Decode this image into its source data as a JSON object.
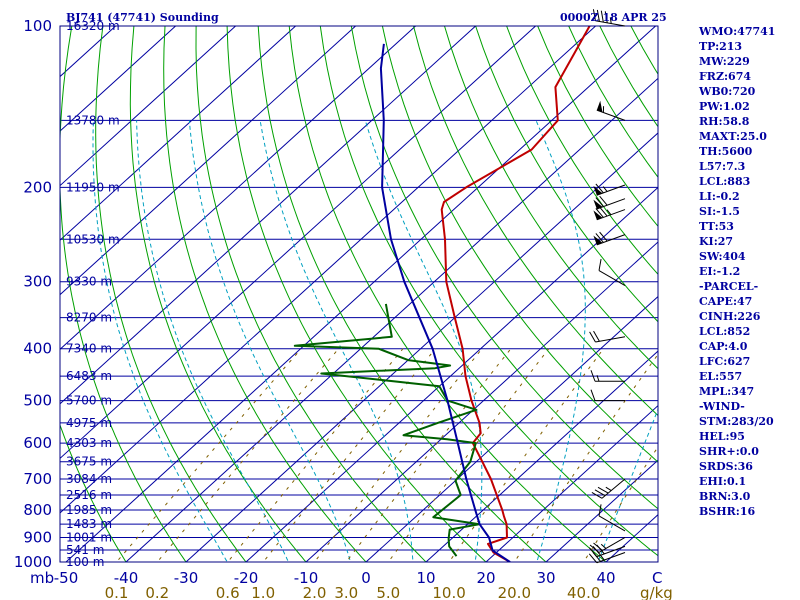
{
  "header": {
    "title": "BJ741 (47741) Sounding",
    "time": "0000Z 18 APR 25"
  },
  "side_panel": {
    "lines": [
      "WMO:47741",
      "TP:213",
      "MW:229",
      "FRZ:674",
      "WB0:720",
      "PW:1.02",
      "RH:58.8",
      "MAXT:25.0",
      "TH:5600",
      "L57:7.3",
      "LCL:883",
      "LI:-0.2",
      "SI:-1.5",
      "TT:53",
      "KI:27",
      "SW:404",
      "EI:-1.2",
      "-PARCEL-",
      "CAPE:47",
      "CINH:226",
      "LCL:852",
      "CAP:4.0",
      "LFC:627",
      "EL:557",
      "MPL:347",
      "-WIND-",
      "STM:283/20",
      "HEL:95",
      "SHR+:0.0",
      "SRDS:36",
      "EHI:0.1",
      "BRN:3.0",
      "BSHR:16"
    ]
  },
  "colors": {
    "frame": "#000080",
    "isobar": "#0000a0",
    "isotherm": "#0000a0",
    "dry_adiabat": "#00a000",
    "moist_adiabat": "#00a0c0",
    "mixing_ratio": "#806000",
    "temperature": "#c00000",
    "dewpoint": "#006000",
    "parcel": "#0000a0",
    "wind_barb": "#000000"
  },
  "chart_data": {
    "type": "skew-t log-p",
    "pressure_axis": {
      "unit": "mb",
      "range": [
        1000,
        100
      ],
      "scale": "log",
      "tick_labels": [
        {
          "p": 100,
          "label": "100"
        },
        {
          "p": 200,
          "label": "200"
        },
        {
          "p": 300,
          "label": "300"
        },
        {
          "p": 400,
          "label": "400"
        },
        {
          "p": 500,
          "label": "500"
        },
        {
          "p": 600,
          "label": "600"
        },
        {
          "p": 700,
          "label": "700"
        },
        {
          "p": 800,
          "label": "800"
        },
        {
          "p": 900,
          "label": "900"
        },
        {
          "p": 1000,
          "label": "1000"
        }
      ]
    },
    "temperature_axis": {
      "unit": "C",
      "unit_label": "C",
      "range": [
        -50,
        50
      ],
      "ticks": [
        -50,
        -40,
        -30,
        -20,
        -10,
        0,
        10,
        20,
        30,
        40
      ],
      "tick_labels": [
        "-50",
        "-40",
        "-30",
        "-20",
        "-10",
        "0",
        "10",
        "20",
        "30",
        "40"
      ]
    },
    "axis_unit_label": "mb",
    "mixing_ratio_axis": {
      "unit_label": "g/kg",
      "values": [
        0.1,
        0.2,
        0.6,
        1.0,
        2.0,
        3.0,
        5.0,
        10.0,
        20.0,
        40.0
      ],
      "labels": [
        "0.1",
        "0.2",
        "0.6",
        "1.0",
        "2.0",
        "3.0",
        "5.0",
        "10.0",
        "20.0",
        "40.0"
      ]
    },
    "height_levels": [
      {
        "p": 100,
        "label": "16320 m"
      },
      {
        "p": 150,
        "label": "13780 m"
      },
      {
        "p": 200,
        "label": "11950 m"
      },
      {
        "p": 250,
        "label": "10530 m"
      },
      {
        "p": 300,
        "label": "9330 m"
      },
      {
        "p": 350,
        "label": "8270 m"
      },
      {
        "p": 400,
        "label": "7340 m"
      },
      {
        "p": 450,
        "label": "6483 m"
      },
      {
        "p": 500,
        "label": "5700 m"
      },
      {
        "p": 550,
        "label": "4975 m"
      },
      {
        "p": 600,
        "label": "4303 m"
      },
      {
        "p": 650,
        "label": "3675 m"
      },
      {
        "p": 700,
        "label": "3084 m"
      },
      {
        "p": 750,
        "label": "2516 m"
      },
      {
        "p": 800,
        "label": "1985 m"
      },
      {
        "p": 850,
        "label": "1483 m"
      },
      {
        "p": 900,
        "label": "1001 m"
      },
      {
        "p": 950,
        "label": "541 m"
      },
      {
        "p": 1000,
        "label": "100 m"
      }
    ],
    "series": [
      {
        "name": "temperature",
        "points": [
          {
            "p": 1000,
            "t": 24.0
          },
          {
            "p": 960,
            "t": 19.5
          },
          {
            "p": 925,
            "t": 17.0
          },
          {
            "p": 900,
            "t": 19.0
          },
          {
            "p": 850,
            "t": 16.5
          },
          {
            "p": 820,
            "t": 14.5
          },
          {
            "p": 800,
            "t": 13.2
          },
          {
            "p": 700,
            "t": 5.6
          },
          {
            "p": 650,
            "t": 1.0
          },
          {
            "p": 600,
            "t": -4.0
          },
          {
            "p": 575,
            "t": -4.5
          },
          {
            "p": 550,
            "t": -6.6
          },
          {
            "p": 500,
            "t": -12.0
          },
          {
            "p": 450,
            "t": -17.5
          },
          {
            "p": 400,
            "t": -23.0
          },
          {
            "p": 350,
            "t": -30.0
          },
          {
            "p": 300,
            "t": -38.0
          },
          {
            "p": 250,
            "t": -46.0
          },
          {
            "p": 220,
            "t": -52.0
          },
          {
            "p": 213,
            "t": -53.0
          },
          {
            "p": 200,
            "t": -52.0
          },
          {
            "p": 170,
            "t": -48.0
          },
          {
            "p": 150,
            "t": -49.0
          },
          {
            "p": 130,
            "t": -55.5
          },
          {
            "p": 110,
            "t": -59.0
          },
          {
            "p": 100,
            "t": -61.0
          }
        ]
      },
      {
        "name": "dewpoint",
        "points": [
          {
            "p": 975,
            "t": 14.0
          },
          {
            "p": 935,
            "t": 11.0
          },
          {
            "p": 905,
            "t": 9.5
          },
          {
            "p": 870,
            "t": 8.0
          },
          {
            "p": 850,
            "t": 12.0
          },
          {
            "p": 825,
            "t": 3.0
          },
          {
            "p": 750,
            "t": 3.5
          },
          {
            "p": 705,
            "t": 0.0
          },
          {
            "p": 650,
            "t": -1.0
          },
          {
            "p": 600,
            "t": -3.5
          },
          {
            "p": 590,
            "t": -9.0
          },
          {
            "p": 580,
            "t": -17.0
          },
          {
            "p": 550,
            "t": -13.5
          },
          {
            "p": 520,
            "t": -9.5
          },
          {
            "p": 500,
            "t": -16.0
          },
          {
            "p": 470,
            "t": -20.0
          },
          {
            "p": 445,
            "t": -42.0
          },
          {
            "p": 435,
            "t": -24.0
          },
          {
            "p": 430,
            "t": -22.0
          },
          {
            "p": 420,
            "t": -30.0
          },
          {
            "p": 400,
            "t": -37.0
          },
          {
            "p": 395,
            "t": -51.5
          },
          {
            "p": 380,
            "t": -37.0
          },
          {
            "p": 330,
            "t": -44.0
          }
        ]
      },
      {
        "name": "parcel",
        "points": [
          {
            "p": 1000,
            "t": 24.0
          },
          {
            "p": 952,
            "t": 19.0
          },
          {
            "p": 900,
            "t": 16.0
          },
          {
            "p": 850,
            "t": 12.0
          },
          {
            "p": 800,
            "t": 8.7
          },
          {
            "p": 700,
            "t": 1.5
          },
          {
            "p": 600,
            "t": -6.5
          },
          {
            "p": 500,
            "t": -16.0
          },
          {
            "p": 400,
            "t": -28.0
          },
          {
            "p": 300,
            "t": -45.0
          },
          {
            "p": 250,
            "t": -55.0
          },
          {
            "p": 200,
            "t": -66.0
          },
          {
            "p": 150,
            "t": -78.0
          },
          {
            "p": 120,
            "t": -88.0
          },
          {
            "p": 108,
            "t": -92.0
          }
        ]
      }
    ],
    "wind_barbs": [
      {
        "p": 960,
        "dir": 250,
        "kt": 25
      },
      {
        "p": 935,
        "dir": 250,
        "kt": 30
      },
      {
        "p": 900,
        "dir": 240,
        "kt": 25
      },
      {
        "p": 875,
        "dir": 300,
        "kt": 10
      },
      {
        "p": 700,
        "dir": 230,
        "kt": 35
      },
      {
        "p": 500,
        "dir": 270,
        "kt": 10
      },
      {
        "p": 460,
        "dir": 270,
        "kt": 15
      },
      {
        "p": 380,
        "dir": 260,
        "kt": 20
      },
      {
        "p": 305,
        "dir": 300,
        "kt": 10
      },
      {
        "p": 245,
        "dir": 250,
        "kt": 70
      },
      {
        "p": 220,
        "dir": 250,
        "kt": 75
      },
      {
        "p": 210,
        "dir": 250,
        "kt": 70
      },
      {
        "p": 198,
        "dir": 250,
        "kt": 65
      },
      {
        "p": 150,
        "dir": 290,
        "kt": 55
      },
      {
        "p": 100,
        "dir": 280,
        "kt": 45
      }
    ]
  }
}
